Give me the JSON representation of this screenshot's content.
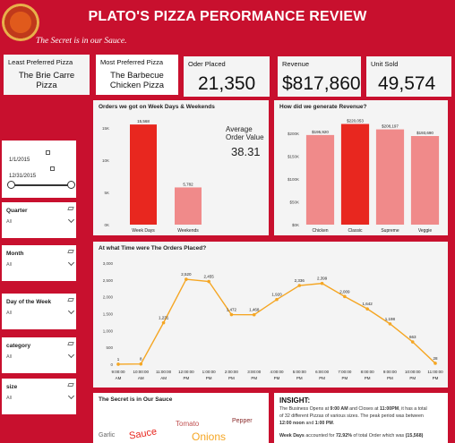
{
  "header": {
    "title": "PLATO'S PIZZA PERORMANCE REVIEW",
    "tagline": "The Secret is in our Sauce."
  },
  "kpis": {
    "least_preferred": {
      "label": "Least Preferred Pizza",
      "value_line1": "The Brie Carre",
      "value_line2": "Pizza"
    },
    "most_preferred": {
      "label": "Most Preferred Pizza",
      "value_line1": "The Barbecue",
      "value_line2": "Chicken Pizza"
    },
    "orders": {
      "label": "Oder Placed",
      "value": "21,350"
    },
    "revenue": {
      "label": "Revenue",
      "value": "$817,860"
    },
    "units": {
      "label": "Unit Sold",
      "value": "49,574"
    }
  },
  "date_slicer": {
    "start": "1/1/2015",
    "end": "12/31/2015"
  },
  "slicers": [
    {
      "title": "Quarter",
      "value": "All"
    },
    {
      "title": "Month",
      "value": "All"
    },
    {
      "title": "Day of the Week",
      "value": "All"
    },
    {
      "title": "category",
      "value": "All"
    },
    {
      "title": "size",
      "value": "All"
    }
  ],
  "weekday_panel": {
    "title": "Orders we got on Week Days & Weekends",
    "avg_label_line1": "Average",
    "avg_label_line2": "Order Value",
    "avg_value": "38.31"
  },
  "revenue_panel": {
    "title": "How did we generate Revenue?"
  },
  "time_panel": {
    "title": "At what Time were The Orders Placed?"
  },
  "sauce_panel": {
    "title": "The Secret is in Our Sauce",
    "words": [
      "Sauce",
      "Tomato",
      "Onions",
      "Garlic",
      "Pepper"
    ]
  },
  "insight": {
    "title": "INSIGHT:",
    "p1_a": "The Business Opens at ",
    "p1_b": "9:00 AM",
    "p1_c": " and Closes at ",
    "p1_d": "11:00PM",
    "p1_e": ", it has a total",
    "p1_line2": "of 32 different Pizzas of various sizes. The peak period was  between",
    "p1_f": "12:00 noon",
    "p1_g": " and ",
    "p1_h": "1:00 PM",
    "p1_i": ".",
    "p2_a": "Week Days",
    "p2_b": " accounted for ",
    "p2_c": "72.92%",
    "p2_d": " of total Order which was ",
    "p2_e": "(15,568)"
  },
  "colors": {
    "brand": "#c8102e",
    "bar_primary": "#e8271f",
    "bar_light": "#f08a8a",
    "line": "#f5a623"
  },
  "chart_data": [
    {
      "type": "bar",
      "title": "Orders we got on Week Days & Weekends",
      "categories": [
        "Week Days",
        "Weekends"
      ],
      "values": [
        15568,
        5782
      ],
      "data_labels": [
        "15,568",
        "5,782"
      ],
      "yticks": [
        "0K",
        "5K",
        "10K",
        "15K"
      ],
      "ylim": [
        0,
        16000
      ]
    },
    {
      "type": "bar",
      "title": "How did we generate Revenue?",
      "categories": [
        "Chicken",
        "Classic",
        "Supreme",
        "Veggie"
      ],
      "values": [
        195920,
        220053,
        208197,
        193690
      ],
      "data_labels": [
        "$195,920",
        "$220,053",
        "$208,197",
        "$193,690"
      ],
      "yticks": [
        "$0K",
        "$50K",
        "$100K",
        "$150K",
        "$200K"
      ],
      "ylim": [
        0,
        225000
      ]
    },
    {
      "type": "line",
      "title": "At what Time were The Orders Placed?",
      "x": [
        "9:00:00 AM",
        "10:00:00 AM",
        "11:00:00 AM",
        "12:00:00 PM",
        "1:00:00 PM",
        "2:00:00 PM",
        "3:00:00 PM",
        "4:00:00 PM",
        "5:00:00 PM",
        "6:00:00 PM",
        "7:00:00 PM",
        "8:00:00 PM",
        "9:00:00 PM",
        "10:00:00 PM",
        "11:00:00 PM"
      ],
      "x_line1": [
        "9:00:00",
        "10:00:00",
        "11:00:00",
        "12:00:00",
        "1:00:00",
        "2:00:00",
        "3:00:00",
        "4:00:00",
        "5:00:00",
        "6:00:00",
        "7:00:00",
        "8:00:00",
        "9:00:00",
        "10:00:00",
        "11:00:00"
      ],
      "x_line2": [
        "AM",
        "AM",
        "AM",
        "PM",
        "PM",
        "PM",
        "PM",
        "PM",
        "PM",
        "PM",
        "PM",
        "PM",
        "PM",
        "PM",
        "PM"
      ],
      "values": [
        1,
        8,
        1231,
        2520,
        2455,
        1472,
        1468,
        1920,
        2336,
        2399,
        2009,
        1642,
        1198,
        663,
        28
      ],
      "data_labels": [
        "1",
        "8",
        "1,231",
        "2,520",
        "2,455",
        "1,472",
        "1,468",
        "1,920",
        "2,336",
        "2,399",
        "2,009",
        "1,642",
        "1,198",
        "663",
        "28"
      ],
      "yticks": [
        "0",
        "500",
        "1,000",
        "1,500",
        "2,000",
        "2,500",
        "3,000"
      ],
      "ylim": [
        0,
        3000
      ]
    }
  ]
}
